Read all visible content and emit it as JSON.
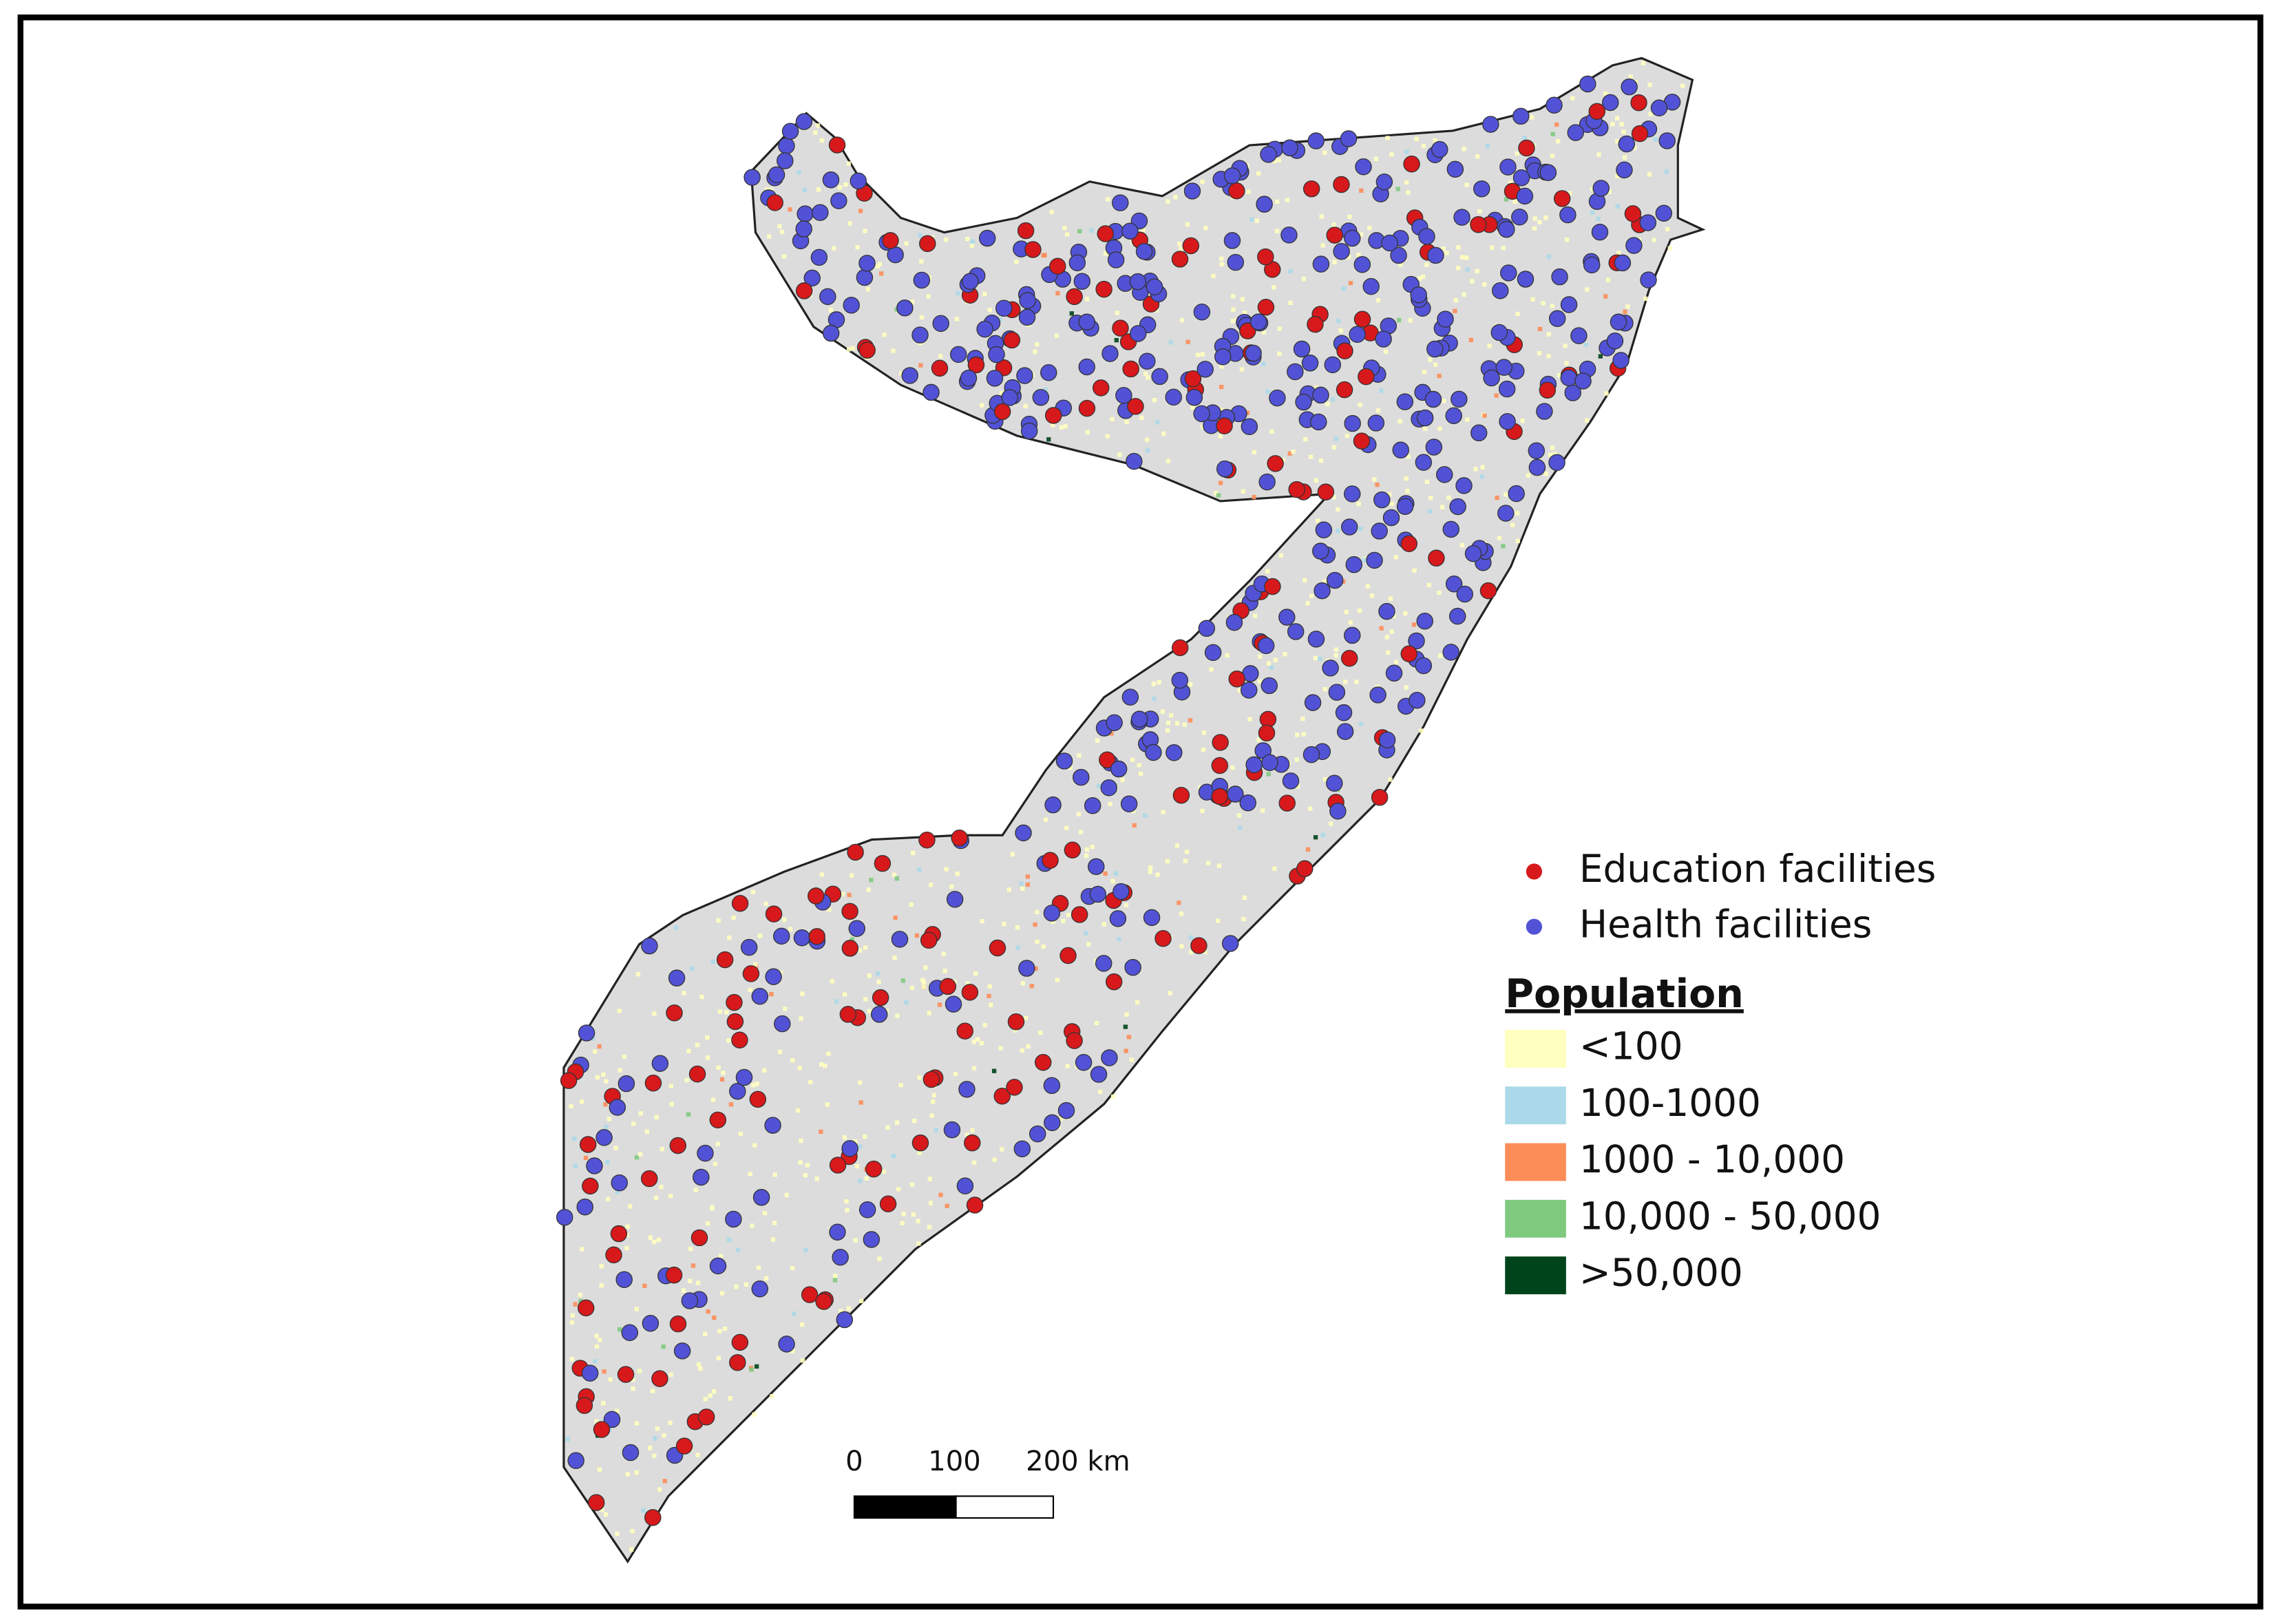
{
  "legend": {
    "points": [
      {
        "label": "Education facilities",
        "color": "#d7191c"
      },
      {
        "label": "Health facilities",
        "color": "#5252d6"
      }
    ],
    "title": "Population",
    "classes": [
      {
        "label": "<100",
        "color": "#ffffbf"
      },
      {
        "label": "100-1000",
        "color": "#abd9e9"
      },
      {
        "label": "1000 - 10,000",
        "color": "#fc8d59"
      },
      {
        "label": "10,000 - 50,000",
        "color": "#7fc97f"
      },
      {
        "label": ">50,000",
        "color": "#00441b"
      }
    ]
  },
  "scale_bar": {
    "labels": [
      "0",
      "100",
      "200 km"
    ]
  }
}
